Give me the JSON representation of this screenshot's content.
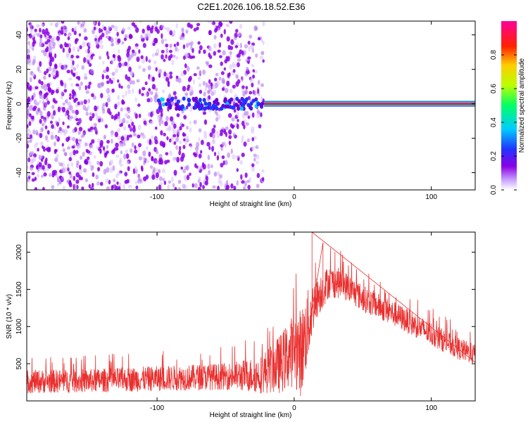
{
  "title": "C2E1.2026.106.18.52.E36",
  "chart_data": [
    {
      "type": "heatmap",
      "name": "spectrogram",
      "xlabel": "Height of straight line (km)",
      "ylabel": "Frequency (Hz)",
      "xlim": [
        -195,
        132
      ],
      "ylim": [
        -50,
        48
      ],
      "x_ticks": [
        -100,
        0,
        100
      ],
      "x_tick_labels": [
        "-100",
        "0",
        "100"
      ],
      "y_ticks": [
        -40,
        -20,
        0,
        20,
        40
      ],
      "y_tick_labels": [
        "-40",
        "-20",
        "0",
        "20",
        "40"
      ],
      "colorbar": {
        "label": "Normalized spectral amplitude",
        "range": [
          0,
          1
        ],
        "ticks": [
          0.0,
          0.2,
          0.4,
          0.6,
          0.8
        ],
        "tick_labels": [
          "0.0",
          "0.2",
          "0.4",
          "0.6",
          "0.8"
        ],
        "colors": [
          "#ffffff",
          "#8a00e6",
          "#2233ff",
          "#00ccff",
          "#00ff66",
          "#bbff00",
          "#ffcc00",
          "#ff2200",
          "#ff0099"
        ]
      },
      "features": [
        {
          "label": "noise speckle",
          "x_range": [
            -195,
            -22
          ],
          "freq_range": [
            -50,
            48
          ],
          "amplitude": 0.12
        },
        {
          "label": "carrier line",
          "x_range": [
            -22,
            132
          ],
          "freq": 0,
          "amplitude": 0.95
        },
        {
          "label": "weak carrier",
          "x_range": [
            -100,
            -22
          ],
          "freq": 0,
          "amplitude": 0.3
        }
      ]
    },
    {
      "type": "line",
      "name": "snr",
      "xlabel": "Height of straight line (km)",
      "ylabel": "SNR (10 * v/v)",
      "xlim": [
        -195,
        132
      ],
      "ylim": [
        0,
        2270
      ],
      "x_ticks": [
        -100,
        0,
        100
      ],
      "x_tick_labels": [
        "-100",
        "0",
        "100"
      ],
      "y_ticks": [
        500,
        1000,
        1500,
        2000
      ],
      "y_tick_labels": [
        "500",
        "1000",
        "1500",
        "2000"
      ],
      "line_color": "#e8302f",
      "envelope": {
        "x": [
          -195,
          -150,
          -100,
          -50,
          -25,
          -10,
          0,
          5,
          10,
          15,
          25,
          35,
          50,
          75,
          100,
          120,
          132
        ],
        "mean": [
          260,
          270,
          300,
          330,
          350,
          500,
          700,
          650,
          1000,
          1350,
          1600,
          1580,
          1380,
          1150,
          900,
          700,
          620
        ],
        "spread": [
          160,
          160,
          170,
          180,
          250,
          400,
          500,
          600,
          500,
          300,
          220,
          200,
          180,
          170,
          160,
          150,
          140
        ]
      },
      "peaks": [
        {
          "x": 13,
          "y": 2270
        },
        {
          "x": 21,
          "y": 2130
        }
      ]
    }
  ]
}
